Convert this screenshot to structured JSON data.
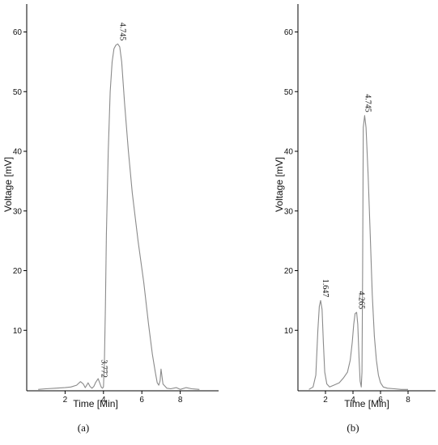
{
  "chart_data": [
    {
      "type": "line",
      "panel_label": "(a)",
      "xlabel": "Time [Min]",
      "ylabel": "Voltage [mV]",
      "xlim": [
        0,
        10
      ],
      "ylim": [
        0,
        64
      ],
      "xticks": [
        2,
        4,
        6,
        8
      ],
      "yticks": [
        10,
        20,
        30,
        40,
        50,
        60
      ],
      "grid": false,
      "line_color": "#8a8a8a",
      "annotations": [
        {
          "text": "3.772",
          "x": 3.77,
          "y": 1.5
        },
        {
          "text": "4.745",
          "x": 4.745,
          "y": 58
        }
      ],
      "series": [
        {
          "x": [
            0.6,
            1.0,
            1.5,
            2.0,
            2.3,
            2.6,
            2.8,
            2.95,
            3.05,
            3.2,
            3.3,
            3.4,
            3.5,
            3.6,
            3.72,
            3.8,
            3.88,
            3.95,
            4.0,
            4.05,
            4.1,
            4.15,
            4.25,
            4.35,
            4.45,
            4.55,
            4.65,
            4.745,
            4.85,
            4.95,
            5.1,
            5.3,
            5.5,
            5.8,
            6.1,
            6.35,
            6.55,
            6.7,
            6.8,
            6.88,
            6.95,
            7.0,
            7.1,
            7.3,
            7.5,
            7.8,
            8.0,
            8.3,
            8.6,
            9.0
          ],
          "y": [
            0.1,
            0.2,
            0.3,
            0.4,
            0.5,
            0.8,
            1.4,
            1.0,
            0.4,
            1.2,
            0.6,
            0.3,
            0.6,
            1.3,
            1.9,
            1.2,
            0.5,
            0.3,
            0.5,
            5.0,
            14.0,
            26.0,
            40.0,
            50.0,
            55.0,
            57.2,
            57.8,
            58.0,
            57.5,
            55.0,
            48.0,
            40.0,
            33.0,
            25.0,
            18.0,
            11.0,
            6.0,
            3.0,
            1.2,
            0.8,
            1.5,
            3.5,
            1.0,
            0.3,
            0.2,
            0.4,
            0.1,
            0.4,
            0.2,
            0.1
          ]
        }
      ]
    },
    {
      "type": "line",
      "panel_label": "(b)",
      "xlabel": "Time [Min]",
      "ylabel": "Voltage [mV]",
      "xlim": [
        0,
        10
      ],
      "ylim": [
        0,
        64
      ],
      "xticks": [
        2,
        4,
        6,
        8
      ],
      "yticks": [
        10,
        20,
        30,
        40,
        50,
        60
      ],
      "grid": false,
      "line_color": "#8a8a8a",
      "annotations": [
        {
          "text": "1.647",
          "x": 1.647,
          "y": 15
        },
        {
          "text": "4.265",
          "x": 4.265,
          "y": 13
        },
        {
          "text": "4.745",
          "x": 4.745,
          "y": 46
        }
      ],
      "series": [
        {
          "x": [
            0.8,
            1.1,
            1.3,
            1.45,
            1.55,
            1.647,
            1.75,
            1.85,
            1.95,
            2.1,
            2.3,
            2.6,
            3.0,
            3.3,
            3.6,
            3.8,
            3.95,
            4.05,
            4.15,
            4.265,
            4.35,
            4.45,
            4.52,
            4.6,
            4.65,
            4.7,
            4.745,
            4.85,
            4.95,
            5.1,
            5.25,
            5.4,
            5.55,
            5.7,
            5.85,
            6.0,
            6.2,
            6.5,
            7.0,
            7.5,
            8.0
          ],
          "y": [
            0.1,
            0.5,
            2.5,
            10.0,
            14.0,
            15.0,
            13.5,
            8.0,
            3.0,
            1.0,
            0.5,
            0.8,
            1.2,
            2.0,
            3.0,
            5.0,
            8.0,
            11.0,
            12.8,
            13.0,
            11.0,
            5.0,
            1.5,
            0.5,
            3.0,
            20.0,
            44.0,
            46.0,
            44.0,
            36.0,
            26.0,
            16.0,
            9.0,
            5.0,
            2.5,
            1.2,
            0.5,
            0.3,
            0.2,
            0.1,
            0.1
          ]
        }
      ]
    }
  ]
}
